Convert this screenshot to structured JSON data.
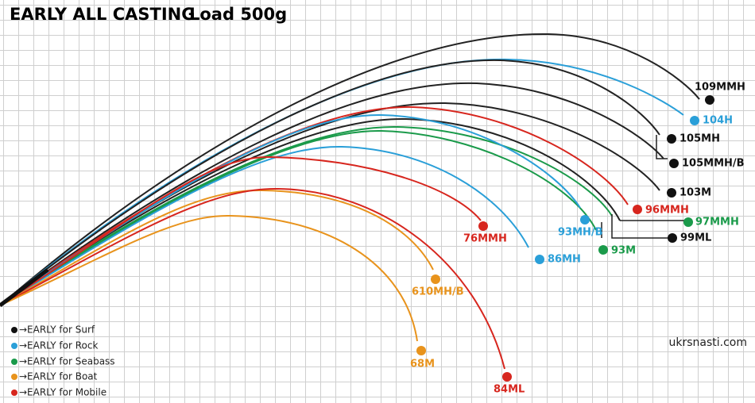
{
  "header": {
    "title": "EARLY ALL CASTING",
    "load": "Load 500g"
  },
  "rods": [
    "109MMH",
    "104H",
    "105MH",
    "105MMH/B",
    "103M",
    "96MMH",
    "97MMH",
    "99ML",
    "93M",
    "93MH/B",
    "86MH",
    "76MMH",
    "610MH/B",
    "68M",
    "84ML"
  ],
  "legend": [
    "→EARLY for Surf",
    "→EARLY for Rock",
    "→EARLY for Seabass",
    "→EARLY for Boat",
    "→EARLY for Mobile"
  ],
  "watermark": "ukrsnasti.com"
}
